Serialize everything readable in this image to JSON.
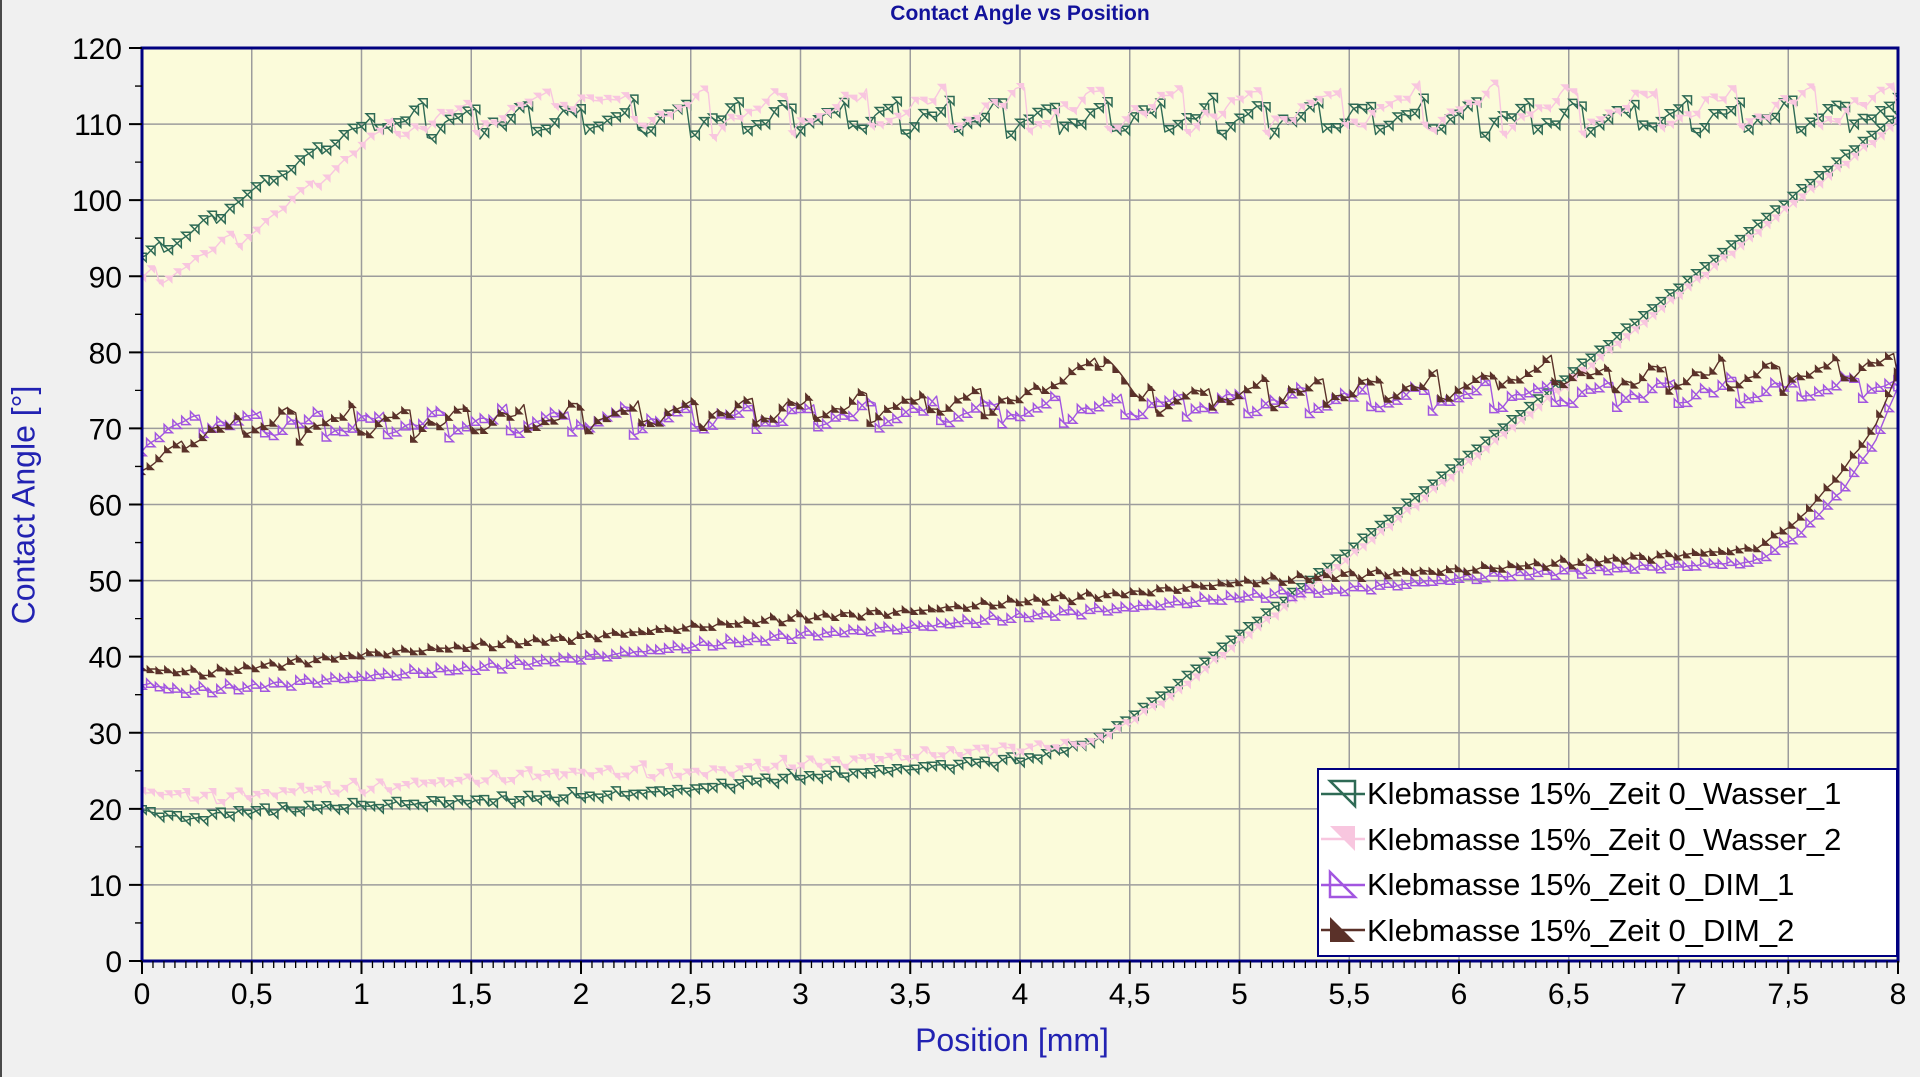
{
  "window": {
    "background": "#F0F0F0",
    "edge_color": "#4A4A4A"
  },
  "chart_data": {
    "type": "line",
    "title": "Contact Angle vs Position",
    "xlabel": "Position [mm]",
    "ylabel": "Contact Angle [°]",
    "xlim": [
      0,
      8
    ],
    "ylim": [
      0,
      120
    ],
    "grid": true,
    "legend_position": "bottom-right",
    "x_major_step": 0.5,
    "x_minor_step": 0.05,
    "y_major_step": 10,
    "y_minor_step": 5,
    "x_tick_labels": [
      "0",
      "0,5",
      "1",
      "1,5",
      "2",
      "2,5",
      "3",
      "3,5",
      "4",
      "4,5",
      "5",
      "5,5",
      "6",
      "6,5",
      "7",
      "7,5",
      "8"
    ],
    "y_tick_labels": [
      "0",
      "10",
      "20",
      "30",
      "40",
      "50",
      "60",
      "70",
      "80",
      "90",
      "100",
      "110",
      "120"
    ],
    "style": {
      "plot_bg": "#FBFBDA",
      "grid_color": "#9C9C9C",
      "frame_color": "#000080",
      "tick_color": "#000000",
      "title_color": "#12129B",
      "axis_label_color": "#2222B2",
      "legend_bg": "#FFFFFF",
      "legend_border": "#000080"
    },
    "series": [
      {
        "name": "Klebmasse 15%_Zeit 0_Wasser_1",
        "color": "#2E6A55",
        "marker": {
          "shape": "triangle-right-angle-top-right",
          "fill": false
        },
        "branches": {
          "advancing": {
            "anchors": [
              [
                0,
                92.5
              ],
              [
                0.15,
                94.5
              ],
              [
                0.35,
                98
              ],
              [
                0.55,
                102
              ],
              [
                0.75,
                105.5
              ],
              [
                0.95,
                109
              ],
              [
                1.1,
                110.3
              ],
              [
                2,
                110.6
              ],
              [
                3,
                110.8
              ],
              [
                4,
                110.8
              ],
              [
                5,
                110.8
              ],
              [
                6,
                110.8
              ],
              [
                7,
                110.8
              ],
              [
                8,
                111.3
              ]
            ],
            "oscillation": {
              "period": 0.24,
              "amplitude": 2.2,
              "jitter": 0.8
            }
          },
          "receding": {
            "anchors": [
              [
                0,
                19.8
              ],
              [
                0.2,
                18.6
              ],
              [
                0.45,
                19.6
              ],
              [
                0.9,
                20.3
              ],
              [
                1.5,
                21
              ],
              [
                2.1,
                21.8
              ],
              [
                2.5,
                22.5
              ],
              [
                2.9,
                24
              ],
              [
                3.3,
                24.8
              ],
              [
                3.7,
                25.8
              ],
              [
                4.05,
                26.6
              ],
              [
                4.35,
                29
              ],
              [
                4.7,
                36
              ],
              [
                5,
                43
              ],
              [
                5.5,
                54
              ],
              [
                6,
                65.5
              ],
              [
                6.5,
                77
              ],
              [
                7,
                88.5
              ],
              [
                7.5,
                100
              ],
              [
                7.9,
                109
              ],
              [
                8,
                111.3
              ]
            ],
            "oscillation": {
              "period": 0.1,
              "amplitude": 0.55,
              "jitter": 0.4
            }
          }
        }
      },
      {
        "name": "Klebmasse 15%_Zeit 0_Wasser_2",
        "color": "#F8C6DF",
        "marker": {
          "shape": "triangle-right-angle-top-right",
          "fill": true
        },
        "branches": {
          "advancing": {
            "anchors": [
              [
                0,
                89
              ],
              [
                0.2,
                91.5
              ],
              [
                0.45,
                95
              ],
              [
                0.7,
                100
              ],
              [
                0.95,
                106
              ],
              [
                1.15,
                109.8
              ],
              [
                1.6,
                111
              ],
              [
                1.95,
                113.8
              ],
              [
                2.3,
                111.3
              ],
              [
                3,
                111.6
              ],
              [
                4,
                111.8
              ],
              [
                5,
                111.8
              ],
              [
                6,
                111.8
              ],
              [
                7,
                111.8
              ],
              [
                8,
                112.3
              ]
            ],
            "oscillation": {
              "period": 0.36,
              "amplitude": 3,
              "jitter": 0.9
            }
          },
          "receding": {
            "anchors": [
              [
                0,
                22.3
              ],
              [
                0.3,
                21.3
              ],
              [
                0.7,
                22.3
              ],
              [
                1.2,
                23
              ],
              [
                1.7,
                24.2
              ],
              [
                2.1,
                24.8
              ],
              [
                2.5,
                24.6
              ],
              [
                2.9,
                25.6
              ],
              [
                3.3,
                26.4
              ],
              [
                3.7,
                27.4
              ],
              [
                4,
                27.8
              ],
              [
                4.35,
                28.8
              ],
              [
                4.7,
                35
              ],
              [
                5,
                42
              ],
              [
                5.5,
                53
              ],
              [
                6,
                64.5
              ],
              [
                6.5,
                76
              ],
              [
                7,
                87.5
              ],
              [
                7.5,
                99
              ],
              [
                7.9,
                108
              ],
              [
                8,
                110.3
              ]
            ],
            "oscillation": {
              "period": 0.13,
              "amplitude": 0.8,
              "jitter": 0.5
            }
          }
        }
      },
      {
        "name": "Klebmasse 15%_Zeit 0_DIM_1",
        "color": "#A256E0",
        "marker": {
          "shape": "triangle-right-angle-bottom-left",
          "fill": false
        },
        "branches": {
          "advancing": {
            "anchors": [
              [
                0,
                67.5
              ],
              [
                0.12,
                70
              ],
              [
                0.3,
                71
              ],
              [
                0.6,
                70.5
              ],
              [
                1,
                70.5
              ],
              [
                1.5,
                70.8
              ],
              [
                2,
                71
              ],
              [
                2.5,
                71.3
              ],
              [
                3,
                71.6
              ],
              [
                3.5,
                72
              ],
              [
                4,
                72.3
              ],
              [
                4.5,
                72.8
              ],
              [
                5,
                73.4
              ],
              [
                5.5,
                73.8
              ],
              [
                6,
                74.2
              ],
              [
                6.5,
                74.5
              ],
              [
                7,
                74.8
              ],
              [
                7.5,
                75
              ],
              [
                8,
                76
              ]
            ],
            "oscillation": {
              "period": 0.28,
              "amplitude": 1.8,
              "jitter": 0.7
            }
          },
          "receding": {
            "anchors": [
              [
                0,
                36.4
              ],
              [
                0.2,
                35.4
              ],
              [
                0.5,
                36
              ],
              [
                1,
                37.3
              ],
              [
                1.5,
                38.4
              ],
              [
                2,
                39.8
              ],
              [
                2.5,
                41.3
              ],
              [
                3,
                42.8
              ],
              [
                3.5,
                43.8
              ],
              [
                4,
                45.2
              ],
              [
                4.5,
                46.4
              ],
              [
                5,
                47.8
              ],
              [
                5.5,
                48.8
              ],
              [
                6,
                50.2
              ],
              [
                6.5,
                51.2
              ],
              [
                7,
                51.9
              ],
              [
                7.35,
                52.4
              ],
              [
                7.55,
                56
              ],
              [
                7.75,
                62
              ],
              [
                7.9,
                68.5
              ],
              [
                8,
                75.5
              ]
            ],
            "oscillation": {
              "period": 0.12,
              "amplitude": 0.5,
              "jitter": 0.35
            }
          }
        }
      },
      {
        "name": "Klebmasse 15%_Zeit 0_DIM_2",
        "color": "#5A3129",
        "marker": {
          "shape": "triangle-right-angle-bottom-left",
          "fill": true
        },
        "branches": {
          "advancing": {
            "anchors": [
              [
                0,
                64.5
              ],
              [
                0.1,
                66.5
              ],
              [
                0.3,
                69.5
              ],
              [
                0.6,
                70.8
              ],
              [
                1,
                70.8
              ],
              [
                1.5,
                71
              ],
              [
                2,
                71.5
              ],
              [
                2.5,
                72
              ],
              [
                3,
                72.5
              ],
              [
                3.5,
                73
              ],
              [
                4,
                73.8
              ],
              [
                4.4,
                79.5
              ],
              [
                4.55,
                73.5
              ],
              [
                5,
                74.5
              ],
              [
                5.5,
                75
              ],
              [
                6,
                75.5
              ],
              [
                6.4,
                77.5
              ],
              [
                6.7,
                76.5
              ],
              [
                7,
                76.8
              ],
              [
                7.5,
                77
              ],
              [
                8,
                78.5
              ]
            ],
            "oscillation": {
              "period": 0.26,
              "amplitude": 2,
              "jitter": 0.8
            }
          },
          "receding": {
            "anchors": [
              [
                0,
                38.4
              ],
              [
                0.3,
                37.9
              ],
              [
                0.6,
                39
              ],
              [
                1,
                40.3
              ],
              [
                1.5,
                41.4
              ],
              [
                2,
                42.6
              ],
              [
                2.5,
                43.9
              ],
              [
                3,
                45.2
              ],
              [
                3.5,
                46
              ],
              [
                4,
                47.3
              ],
              [
                4.5,
                48.4
              ],
              [
                5,
                49.8
              ],
              [
                5.5,
                50.8
              ],
              [
                6,
                51.4
              ],
              [
                6.5,
                52.4
              ],
              [
                7,
                53.4
              ],
              [
                7.35,
                54.2
              ],
              [
                7.55,
                58
              ],
              [
                7.75,
                64.5
              ],
              [
                7.9,
                70.5
              ],
              [
                8,
                77.5
              ]
            ],
            "oscillation": {
              "period": 0.12,
              "amplitude": 0.5,
              "jitter": 0.35
            }
          }
        }
      }
    ]
  }
}
